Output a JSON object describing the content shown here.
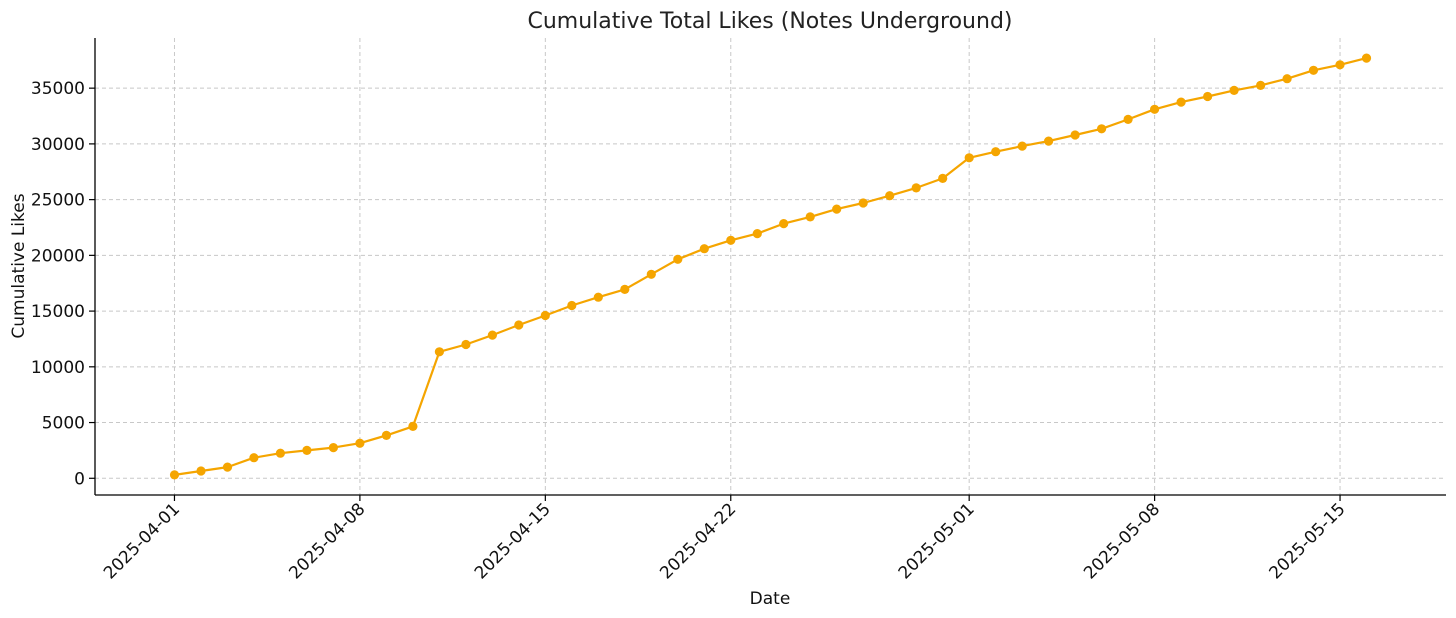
{
  "chart_data": {
    "type": "line",
    "title": "Cumulative Total Likes (Notes Underground)",
    "xlabel": "Date",
    "ylabel": "Cumulative Likes",
    "x_tick_labels": [
      "2025-04-01",
      "2025-04-08",
      "2025-04-15",
      "2025-04-22",
      "2025-05-01",
      "2025-05-08",
      "2025-05-15"
    ],
    "y_tick_labels": [
      "0",
      "5000",
      "10000",
      "15000",
      "20000",
      "25000",
      "30000",
      "35000"
    ],
    "ylim": [
      -1500,
      39500
    ],
    "xlim": [
      "2025-03-29",
      "2025-05-19"
    ],
    "grid": true,
    "color": "#f5a500",
    "x": [
      "2025-04-01",
      "2025-04-02",
      "2025-04-03",
      "2025-04-04",
      "2025-04-05",
      "2025-04-06",
      "2025-04-07",
      "2025-04-08",
      "2025-04-09",
      "2025-04-10",
      "2025-04-11",
      "2025-04-12",
      "2025-04-13",
      "2025-04-14",
      "2025-04-15",
      "2025-04-16",
      "2025-04-17",
      "2025-04-18",
      "2025-04-19",
      "2025-04-20",
      "2025-04-21",
      "2025-04-22",
      "2025-04-23",
      "2025-04-24",
      "2025-04-25",
      "2025-04-26",
      "2025-04-27",
      "2025-04-28",
      "2025-04-29",
      "2025-04-30",
      "2025-05-01",
      "2025-05-02",
      "2025-05-03",
      "2025-05-04",
      "2025-05-05",
      "2025-05-06",
      "2025-05-07",
      "2025-05-08",
      "2025-05-09",
      "2025-05-10",
      "2025-05-11",
      "2025-05-12",
      "2025-05-13",
      "2025-05-14",
      "2025-05-15",
      "2025-05-16"
    ],
    "series": [
      {
        "values": [
          300,
          650,
          1000,
          1850,
          2250,
          2500,
          2750,
          3150,
          3850,
          4650,
          11350,
          12000,
          12850,
          13750,
          14600,
          15500,
          16250,
          16950,
          18300,
          19650,
          20600,
          21350,
          21950,
          22850,
          23450,
          24150,
          24700,
          25350,
          26050,
          26900,
          28750,
          29300,
          29800,
          30250,
          30800,
          31350,
          32200,
          33100,
          33750,
          34250,
          34800,
          35250,
          35850,
          36600,
          37100,
          37700
        ]
      }
    ]
  }
}
